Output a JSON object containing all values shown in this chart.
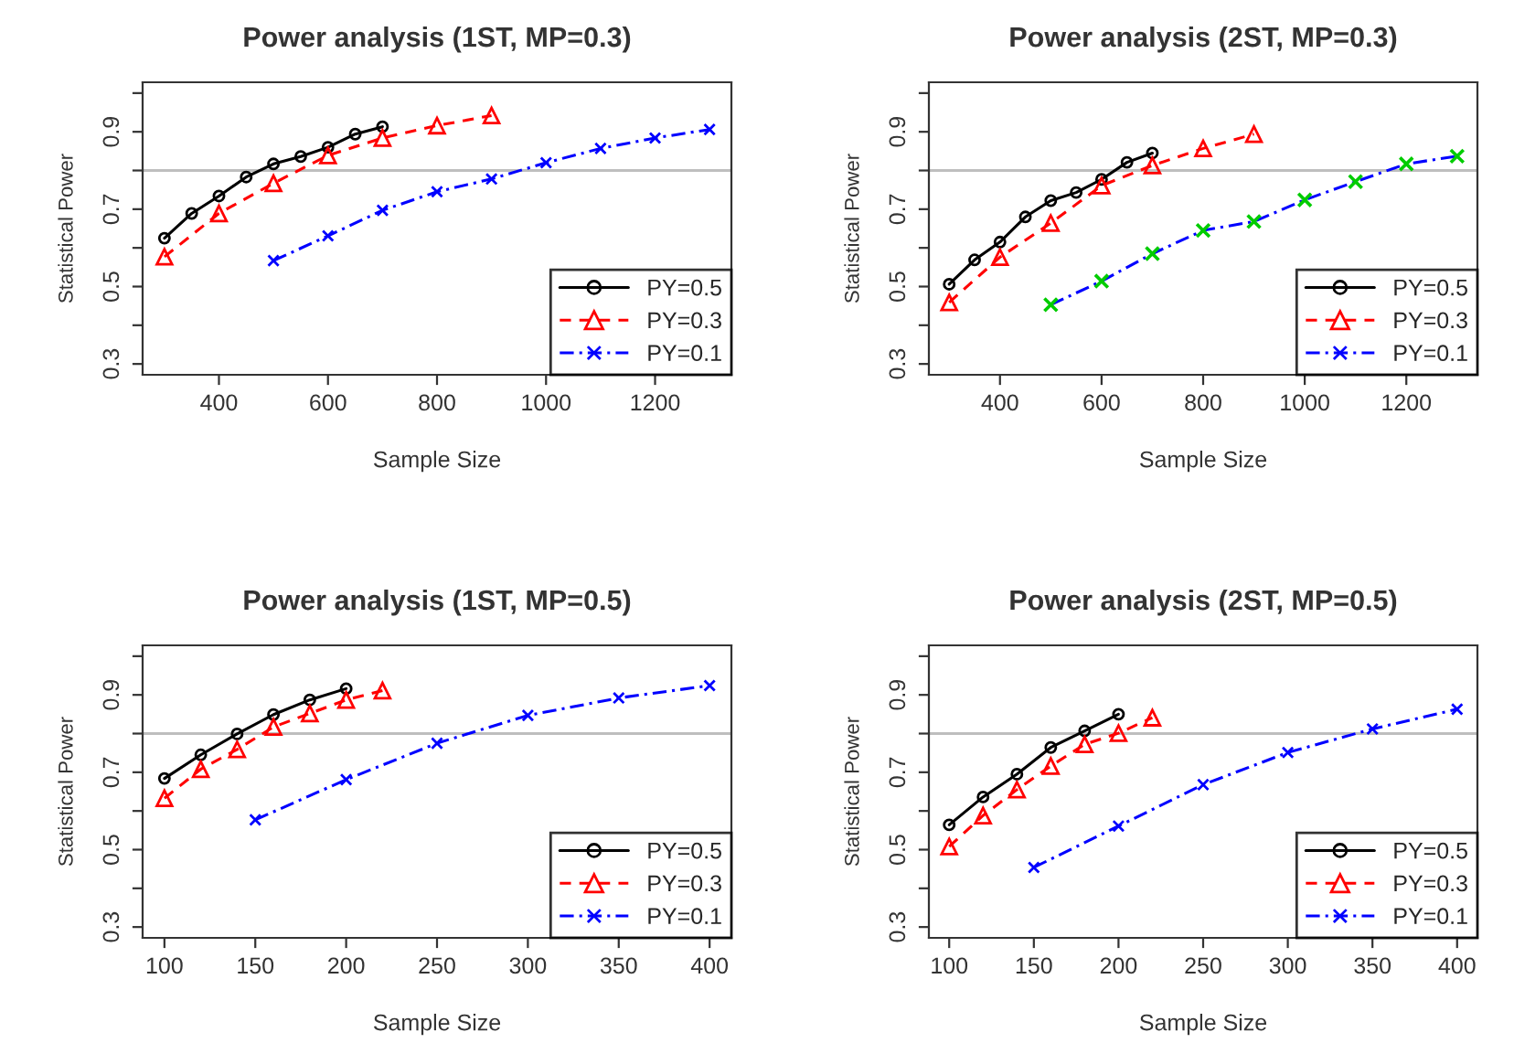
{
  "chart_data": [
    {
      "type": "line",
      "title": "Power analysis (1ST, MP=0.3)",
      "xlabel": "Sample Size",
      "ylabel": "Statistical Power",
      "xlim": [
        260,
        1340
      ],
      "xticks": [
        400,
        600,
        800,
        1000,
        1200
      ],
      "ylim": [
        0.272,
        1.028
      ],
      "yticks": [
        0.3,
        {
          "value": 0.4,
          "label": null
        },
        0.5,
        {
          "value": 0.6,
          "label": null
        },
        0.7,
        {
          "value": 0.8,
          "label": null
        },
        0.9,
        {
          "value": 1.0,
          "label": null
        }
      ],
      "grid": false,
      "legend": "bottom right",
      "ref_lines": [
        {
          "axis": "y",
          "value": 0.8,
          "color": "#bebebe"
        }
      ],
      "series": [
        {
          "name": "PY=0.5",
          "color": "#000000",
          "marker": "circle",
          "line_style": "solid",
          "x": [
            300,
            350,
            400,
            450,
            500,
            550,
            600,
            650,
            700
          ],
          "values": [
            0.625,
            0.689,
            0.734,
            0.783,
            0.817,
            0.836,
            0.86,
            0.894,
            0.913
          ]
        },
        {
          "name": "PY=0.3",
          "color": "#ff0000",
          "marker": "triangle",
          "line_style": "dashed",
          "x": [
            300,
            400,
            500,
            600,
            700,
            800,
            900
          ],
          "values": [
            0.577,
            0.689,
            0.767,
            0.839,
            0.884,
            0.916,
            0.942
          ]
        },
        {
          "name": "PY=0.1",
          "color": "#0000ff",
          "marker": "cross",
          "line_style": "dotted",
          "x": [
            500,
            600,
            700,
            800,
            900,
            1000,
            1100,
            1200,
            1300
          ],
          "values": [
            0.567,
            0.631,
            0.697,
            0.745,
            0.778,
            0.82,
            0.857,
            0.884,
            0.906
          ]
        }
      ]
    },
    {
      "type": "line",
      "title": "Power analysis (2ST, MP=0.3)",
      "xlabel": "Sample Size",
      "ylabel": "Statistical Power",
      "xlim": [
        260,
        1340
      ],
      "xticks": [
        400,
        600,
        800,
        1000,
        1200
      ],
      "ylim": [
        0.272,
        1.028
      ],
      "yticks": [
        0.3,
        {
          "value": 0.4,
          "label": null
        },
        0.5,
        {
          "value": 0.6,
          "label": null
        },
        0.7,
        {
          "value": 0.8,
          "label": null
        },
        0.9,
        {
          "value": 1.0,
          "label": null
        }
      ],
      "grid": false,
      "legend": "bottom right",
      "ref_lines": [
        {
          "axis": "y",
          "value": 0.8,
          "color": "#bebebe"
        }
      ],
      "series": [
        {
          "name": "PY=0.5",
          "color": "#000000",
          "marker": "circle",
          "line_style": "solid",
          "x": [
            300,
            350,
            400,
            450,
            500,
            550,
            600,
            650,
            700
          ],
          "values": [
            0.506,
            0.569,
            0.615,
            0.68,
            0.722,
            0.743,
            0.777,
            0.821,
            0.845
          ]
        },
        {
          "name": "PY=0.3",
          "color": "#ff0000",
          "marker": "triangle",
          "line_style": "dashed",
          "x": [
            300,
            400,
            500,
            600,
            700,
            800,
            900
          ],
          "values": [
            0.459,
            0.576,
            0.664,
            0.761,
            0.813,
            0.857,
            0.894
          ]
        },
        {
          "name": "PY=0.1",
          "color": "#0000ff",
          "colors": [
            "#00cc00",
            "#00cc00",
            "#00cc00",
            "#00cc00",
            "#00cc00",
            "#00cc00",
            "#00cc00",
            "#00cc00",
            "#00cc00"
          ],
          "marker": "cross",
          "line_style": "dotted",
          "x": [
            500,
            600,
            700,
            800,
            900,
            1000,
            1100,
            1200,
            1300
          ],
          "values": [
            0.453,
            0.514,
            0.585,
            0.645,
            0.668,
            0.724,
            0.771,
            0.817,
            0.837
          ]
        }
      ]
    },
    {
      "type": "line",
      "title": "Power analysis (1ST, MP=0.5)",
      "xlabel": "Sample Size",
      "ylabel": "Statistical Power",
      "xlim": [
        88,
        412
      ],
      "xticks": [
        100,
        150,
        200,
        250,
        300,
        350,
        400
      ],
      "ylim": [
        0.272,
        1.028
      ],
      "yticks": [
        0.3,
        {
          "value": 0.4,
          "label": null
        },
        0.5,
        {
          "value": 0.6,
          "label": null
        },
        0.7,
        {
          "value": 0.8,
          "label": null
        },
        0.9,
        {
          "value": 1.0,
          "label": null
        }
      ],
      "grid": false,
      "legend": "bottom right",
      "ref_lines": [
        {
          "axis": "y",
          "value": 0.8,
          "color": "#bebebe"
        }
      ],
      "series": [
        {
          "name": "PY=0.5",
          "color": "#000000",
          "marker": "circle",
          "line_style": "solid",
          "x": [
            100,
            120,
            140,
            160,
            180,
            200
          ],
          "values": [
            0.684,
            0.745,
            0.799,
            0.849,
            0.887,
            0.916
          ]
        },
        {
          "name": "PY=0.3",
          "color": "#ff0000",
          "marker": "triangle",
          "line_style": "dashed",
          "x": [
            100,
            120,
            140,
            160,
            180,
            200,
            220
          ],
          "values": [
            0.633,
            0.708,
            0.759,
            0.817,
            0.852,
            0.887,
            0.911
          ]
        },
        {
          "name": "PY=0.1",
          "color": "#0000ff",
          "marker": "cross",
          "line_style": "dotted",
          "x": [
            150,
            200,
            250,
            300,
            350,
            400
          ],
          "values": [
            0.577,
            0.681,
            0.775,
            0.847,
            0.892,
            0.924
          ]
        }
      ]
    },
    {
      "type": "line",
      "title": "Power analysis (2ST, MP=0.5)",
      "xlabel": "Sample Size",
      "ylabel": "Statistical Power",
      "xlim": [
        88,
        412
      ],
      "xticks": [
        100,
        150,
        200,
        250,
        300,
        350,
        400
      ],
      "ylim": [
        0.272,
        1.028
      ],
      "yticks": [
        0.3,
        {
          "value": 0.4,
          "label": null
        },
        0.5,
        {
          "value": 0.6,
          "label": null
        },
        0.7,
        {
          "value": 0.8,
          "label": null
        },
        0.9,
        {
          "value": 1.0,
          "label": null
        }
      ],
      "grid": false,
      "legend": "bottom right",
      "ref_lines": [
        {
          "axis": "y",
          "value": 0.8,
          "color": "#bebebe"
        }
      ],
      "series": [
        {
          "name": "PY=0.5",
          "color": "#000000",
          "marker": "circle",
          "line_style": "solid",
          "x": [
            100,
            120,
            140,
            160,
            180,
            200
          ],
          "values": [
            0.564,
            0.636,
            0.695,
            0.764,
            0.807,
            0.85
          ]
        },
        {
          "name": "PY=0.3",
          "color": "#ff0000",
          "marker": "triangle",
          "line_style": "dashed",
          "x": [
            100,
            120,
            140,
            160,
            180,
            200,
            220
          ],
          "values": [
            0.508,
            0.588,
            0.655,
            0.716,
            0.772,
            0.801,
            0.841
          ]
        },
        {
          "name": "PY=0.1",
          "color": "#0000ff",
          "marker": "cross",
          "line_style": "dotted",
          "x": [
            150,
            200,
            250,
            300,
            350,
            400
          ],
          "values": [
            0.454,
            0.561,
            0.668,
            0.751,
            0.812,
            0.863
          ]
        }
      ]
    }
  ]
}
